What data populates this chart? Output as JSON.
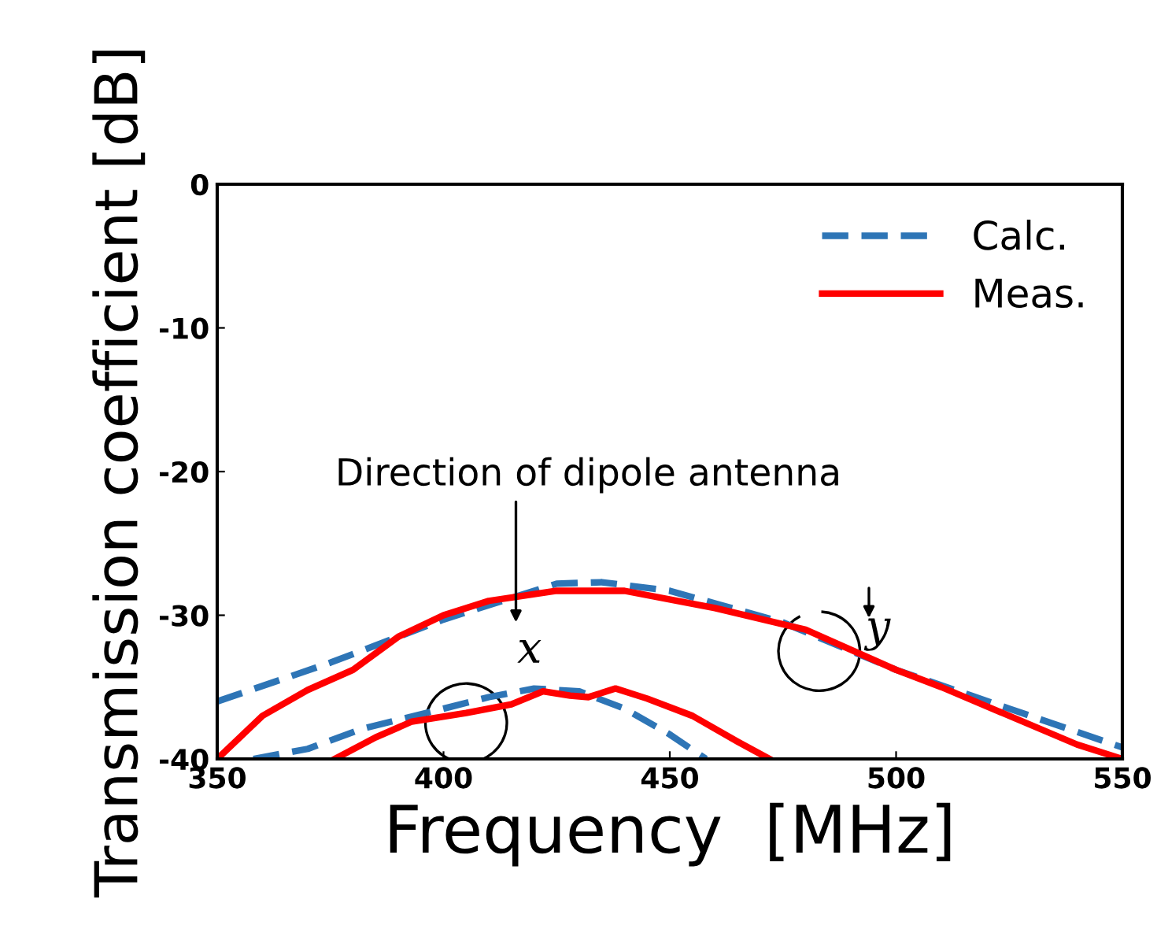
{
  "chart_data": {
    "type": "line",
    "xlabel": "Frequency  [MHz]",
    "ylabel": "Transmission coefficient [dB]",
    "xlim": [
      350,
      550
    ],
    "xticks": [
      350,
      400,
      450,
      500,
      550
    ],
    "ylim": [
      -40,
      0
    ],
    "yticks": [
      -40,
      -30,
      -20,
      -10,
      0
    ],
    "grid": false,
    "legend": "top right",
    "annotations": [
      "Direction of dipole antenna",
      "x",
      "y"
    ],
    "series": [
      {
        "name": "Calc.",
        "color": "#2e75b6",
        "line_style": "dashed",
        "x": [
          350,
          375,
          400,
          425,
          435,
          450,
          475,
          500,
          525,
          550
        ],
        "values": [
          -36,
          -33.3,
          -30.3,
          -27.8,
          -27.7,
          -28.3,
          -30.5,
          -33.8,
          -36.5,
          -39.2
        ]
      },
      {
        "name": "Meas.",
        "color": "#ff0000",
        "line_style": "solid",
        "x": [
          350,
          360,
          370,
          380,
          390,
          400,
          410,
          425,
          440,
          460,
          480,
          500,
          510,
          525,
          540,
          550
        ],
        "values": [
          -40,
          -37,
          -35.2,
          -33.8,
          -31.5,
          -30,
          -29,
          -28.3,
          -28.3,
          -29.5,
          -31,
          -33.8,
          -35,
          -37,
          -39,
          -40
        ]
      },
      {
        "color": "#2e75b6",
        "line_style": "dashed",
        "x": [
          358,
          370,
          382,
          400,
          410,
          420,
          430,
          440,
          450,
          458
        ],
        "values": [
          -40,
          -39.3,
          -37.9,
          -36.5,
          -35.7,
          -35.1,
          -35.3,
          -36.5,
          -38.3,
          -40
        ]
      },
      {
        "color": "#ff0000",
        "line_style": "solid",
        "x": [
          376,
          385,
          393,
          405,
          415,
          422,
          428,
          432,
          438,
          445,
          455,
          465,
          472
        ],
        "values": [
          -40,
          -38.5,
          -37.4,
          -36.8,
          -36.2,
          -35.3,
          -35.6,
          -35.7,
          -35.1,
          -35.8,
          -37,
          -38.8,
          -40
        ]
      }
    ]
  }
}
